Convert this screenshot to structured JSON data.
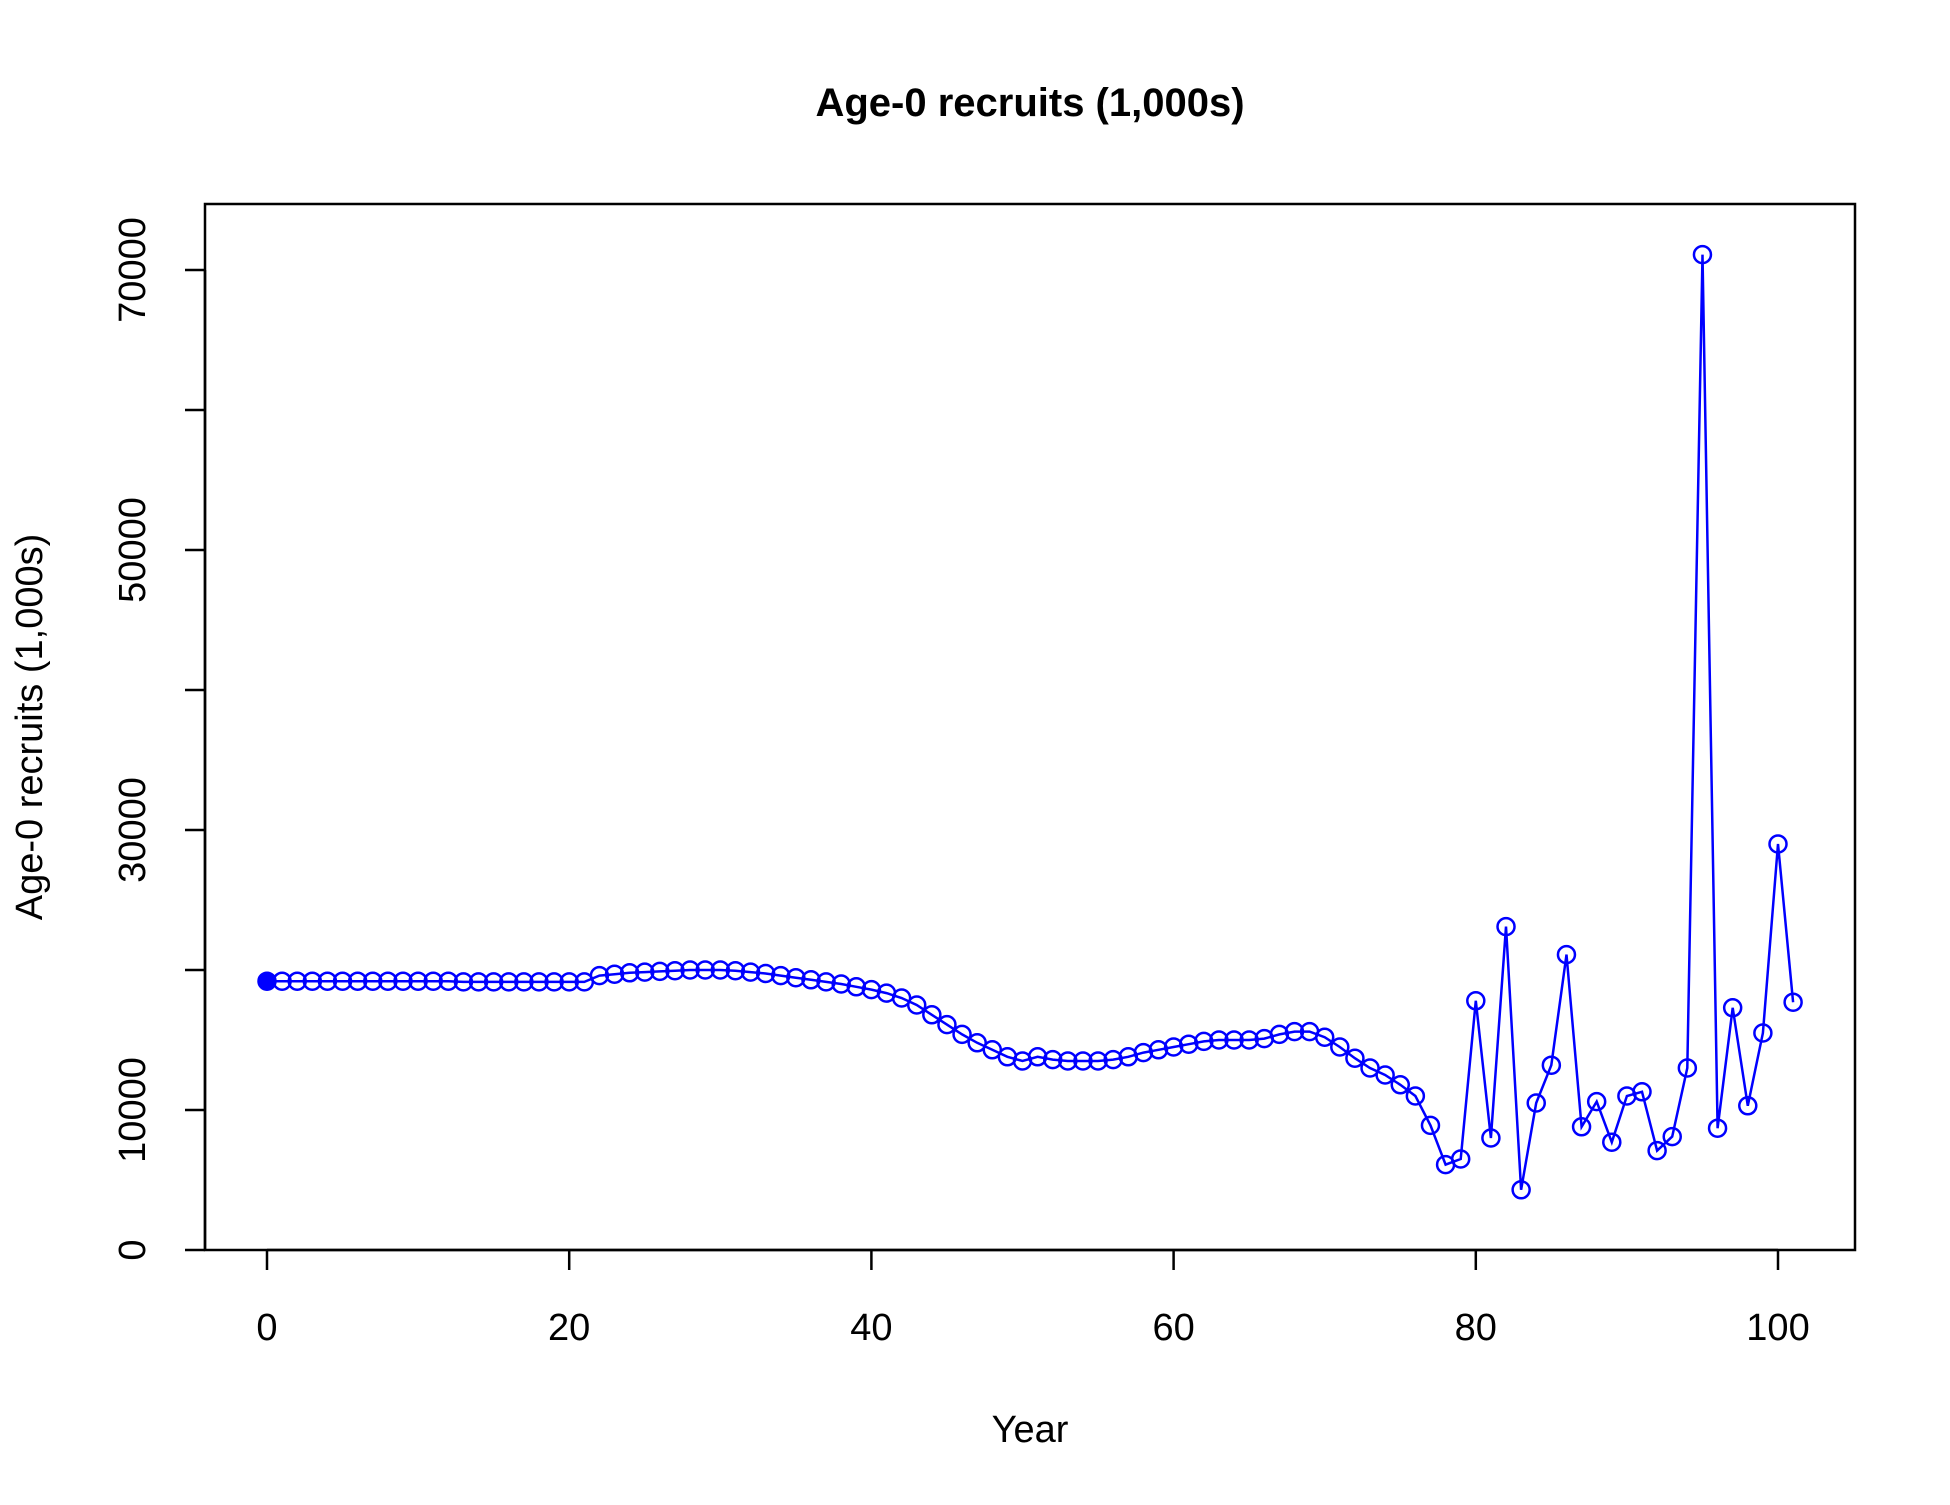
{
  "chart_data": {
    "type": "line",
    "title": "Age-0 recruits (1,000s)",
    "xlabel": "Year",
    "ylabel": "Age-0 recruits (1,000s)",
    "xlim": [
      -4,
      105
    ],
    "ylim": [
      0,
      75000
    ],
    "xticks": [
      0,
      20,
      40,
      60,
      80,
      100
    ],
    "xtick_labels": [
      "0",
      "20",
      "40",
      "60",
      "80",
      "100"
    ],
    "yticks": [
      0,
      10000,
      20000,
      30000,
      40000,
      50000,
      60000,
      70000
    ],
    "ytick_labels": [
      "0",
      "10000",
      "",
      "30000",
      "",
      "50000",
      "",
      "70000"
    ],
    "grid": false,
    "legend": "none",
    "color": "#0000ff",
    "first_point_filled": true,
    "series": [
      {
        "x": [
          0,
          1,
          2,
          3,
          4,
          5,
          6,
          7,
          8,
          9,
          10,
          11,
          12,
          13,
          14,
          15,
          16,
          17,
          18,
          19,
          20,
          21,
          22,
          23,
          24,
          25,
          26,
          27,
          28,
          29,
          30,
          31,
          32,
          33,
          34,
          35,
          36,
          37,
          38,
          39,
          40,
          41,
          42,
          43,
          44,
          45,
          46,
          47,
          48,
          49,
          50,
          51,
          52,
          53,
          54,
          55,
          56,
          57,
          58,
          59,
          60,
          61,
          62,
          63,
          64,
          65,
          66,
          67,
          68,
          69,
          70,
          71,
          72,
          73,
          74,
          75,
          76,
          77,
          78,
          79,
          80,
          81,
          82,
          83,
          84,
          85,
          86,
          87,
          88,
          89,
          90,
          91,
          92,
          93,
          94,
          95,
          96,
          97,
          98,
          99,
          100,
          101
        ],
        "y": [
          19200,
          19200,
          19200,
          19200,
          19200,
          19200,
          19200,
          19200,
          19200,
          19200,
          19200,
          19200,
          19200,
          19150,
          19150,
          19150,
          19150,
          19150,
          19150,
          19150,
          19150,
          19150,
          19600,
          19700,
          19800,
          19850,
          19900,
          19950,
          20000,
          20000,
          20000,
          19950,
          19850,
          19750,
          19600,
          19450,
          19300,
          19150,
          19000,
          18800,
          18600,
          18350,
          18000,
          17500,
          16800,
          16100,
          15400,
          14800,
          14300,
          13800,
          13500,
          13800,
          13600,
          13500,
          13500,
          13500,
          13600,
          13800,
          14100,
          14300,
          14500,
          14700,
          14900,
          15000,
          15000,
          15000,
          15100,
          15400,
          15600,
          15600,
          15200,
          14500,
          13700,
          13000,
          12500,
          11800,
          11000,
          8900,
          6100,
          6500,
          17800,
          8000,
          23100,
          4300,
          10500,
          13200,
          21100,
          8800,
          10600,
          7700,
          11000,
          11300,
          7100,
          8100,
          13000,
          71100,
          8700,
          17300,
          10300,
          15500,
          29000,
          17700
        ]
      }
    ]
  }
}
